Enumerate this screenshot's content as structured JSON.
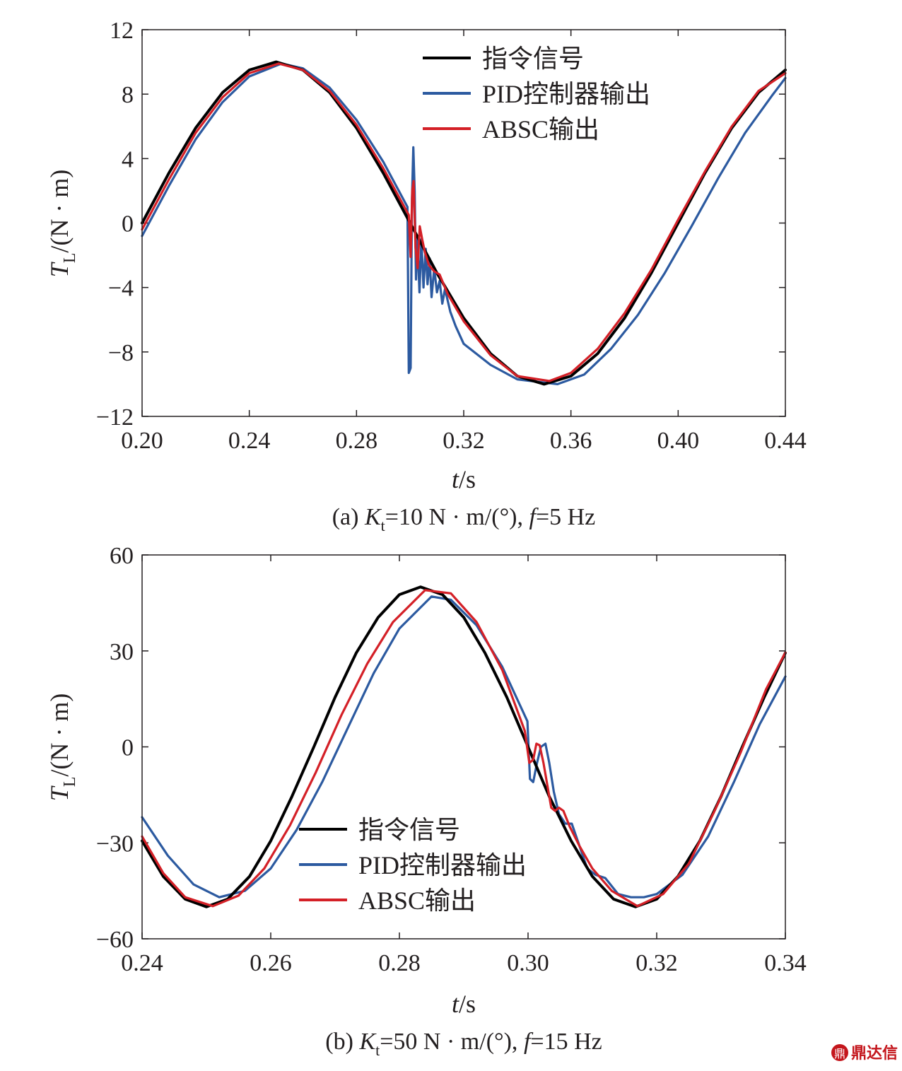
{
  "chart_data": [
    {
      "type": "line",
      "xlabel_italic": "t",
      "xlabel_unit": "/s",
      "ylabel_italic": "T",
      "ylabel_sub": "L",
      "ylabel_unit": "/(N · m)",
      "xlim": [
        0.2,
        0.44
      ],
      "ylim": [
        -12,
        12
      ],
      "xticks": [
        0.2,
        0.24,
        0.28,
        0.32,
        0.36,
        0.4,
        0.44
      ],
      "xtick_labels": [
        "0.20",
        "0.24",
        "0.28",
        "0.32",
        "0.36",
        "0.40",
        "0.44"
      ],
      "yticks": [
        -12,
        -8,
        -4,
        0,
        4,
        8,
        12
      ],
      "ytick_labels": [
        "−12",
        "−8",
        "−4",
        "0",
        "4",
        "8",
        "12"
      ],
      "legend_position": "top-right",
      "caption": {
        "prefix": "(a) ",
        "k": "K",
        "k_sub": "t",
        "mid": "=10 N · m/(°), ",
        "f": "f",
        "suffix": "=5 Hz"
      },
      "series": [
        {
          "name": "指令信号",
          "color": "#000000",
          "x": [
            0.2,
            0.21,
            0.22,
            0.23,
            0.24,
            0.25,
            0.26,
            0.27,
            0.28,
            0.29,
            0.3,
            0.31,
            0.32,
            0.33,
            0.34,
            0.35,
            0.36,
            0.37,
            0.38,
            0.39,
            0.4,
            0.41,
            0.42,
            0.43,
            0.44
          ],
          "y": [
            0.0,
            3.1,
            5.9,
            8.1,
            9.5,
            10.0,
            9.5,
            8.1,
            5.9,
            3.1,
            0.0,
            -3.1,
            -5.9,
            -8.1,
            -9.5,
            -10.0,
            -9.5,
            -8.1,
            -5.9,
            -3.1,
            0.0,
            3.1,
            5.9,
            8.1,
            9.5
          ]
        },
        {
          "name": "PID控制器输出",
          "color": "#2c5aa0",
          "x": [
            0.2,
            0.21,
            0.22,
            0.23,
            0.24,
            0.252,
            0.26,
            0.27,
            0.28,
            0.29,
            0.299,
            0.2995,
            0.3002,
            0.3007,
            0.3012,
            0.3017,
            0.3022,
            0.3027,
            0.3035,
            0.3042,
            0.305,
            0.3058,
            0.3065,
            0.3073,
            0.308,
            0.309,
            0.31,
            0.311,
            0.312,
            0.313,
            0.315,
            0.317,
            0.32,
            0.33,
            0.34,
            0.355,
            0.365,
            0.375,
            0.385,
            0.395,
            0.405,
            0.415,
            0.425,
            0.435,
            0.44
          ],
          "y": [
            -0.8,
            2.3,
            5.2,
            7.5,
            9.1,
            9.9,
            9.6,
            8.4,
            6.4,
            3.8,
            1.0,
            -9.3,
            -9.0,
            1.5,
            4.7,
            2.0,
            -3.5,
            -0.8,
            -4.3,
            -1.0,
            -4.0,
            -1.6,
            -3.8,
            -2.2,
            -4.6,
            -2.8,
            -4.3,
            -3.6,
            -5.0,
            -4.1,
            -5.5,
            -6.4,
            -7.5,
            -8.8,
            -9.7,
            -10.0,
            -9.4,
            -7.8,
            -5.7,
            -3.1,
            -0.2,
            2.8,
            5.6,
            7.9,
            9.0
          ]
        },
        {
          "name": "ABSC输出",
          "color": "#d42027",
          "x": [
            0.2,
            0.21,
            0.22,
            0.23,
            0.24,
            0.251,
            0.26,
            0.27,
            0.28,
            0.29,
            0.2995,
            0.3002,
            0.3008,
            0.3013,
            0.302,
            0.3028,
            0.3036,
            0.3045,
            0.3055,
            0.307,
            0.309,
            0.311,
            0.314,
            0.32,
            0.33,
            0.34,
            0.352,
            0.36,
            0.37,
            0.38,
            0.39,
            0.4,
            0.41,
            0.42,
            0.43,
            0.44
          ],
          "y": [
            -0.4,
            2.7,
            5.6,
            7.8,
            9.3,
            9.9,
            9.5,
            8.2,
            6.1,
            3.4,
            0.5,
            -2.1,
            2.0,
            2.6,
            -1.5,
            -2.8,
            -0.2,
            -1.0,
            -1.8,
            -2.6,
            -3.0,
            -3.2,
            -4.4,
            -6.1,
            -8.2,
            -9.5,
            -9.8,
            -9.3,
            -7.8,
            -5.6,
            -2.9,
            0.2,
            3.2,
            6.0,
            8.2,
            9.3
          ]
        }
      ]
    },
    {
      "type": "line",
      "xlabel_italic": "t",
      "xlabel_unit": "/s",
      "ylabel_italic": "T",
      "ylabel_sub": "L",
      "ylabel_unit": "/(N · m)",
      "xlim": [
        0.24,
        0.34
      ],
      "ylim": [
        -60,
        60
      ],
      "xticks": [
        0.24,
        0.26,
        0.28,
        0.3,
        0.32,
        0.34
      ],
      "xtick_labels": [
        "0.24",
        "0.26",
        "0.28",
        "0.30",
        "0.32",
        "0.34"
      ],
      "yticks": [
        -60,
        -30,
        0,
        30,
        60
      ],
      "ytick_labels": [
        "−60",
        "−30",
        "0",
        "30",
        "60"
      ],
      "legend_position": "bottom-left",
      "caption": {
        "prefix": "(b) ",
        "k": "K",
        "k_sub": "t",
        "mid": "=50 N · m/(°), ",
        "f": "f",
        "suffix": "=15 Hz"
      },
      "series": [
        {
          "name": "指令信号",
          "color": "#000000",
          "x": [
            0.24,
            0.2433,
            0.2467,
            0.25,
            0.2533,
            0.2567,
            0.26,
            0.2633,
            0.2667,
            0.27,
            0.2733,
            0.2767,
            0.28,
            0.2833,
            0.2867,
            0.29,
            0.2933,
            0.2967,
            0.3,
            0.3033,
            0.3067,
            0.31,
            0.3133,
            0.3167,
            0.32,
            0.3233,
            0.3267,
            0.33,
            0.3333,
            0.3367,
            0.34
          ],
          "y": [
            -29.4,
            -40.5,
            -47.6,
            -50.0,
            -47.6,
            -40.5,
            -29.4,
            -15.5,
            0.0,
            15.5,
            29.4,
            40.5,
            47.6,
            50.0,
            47.6,
            40.5,
            29.4,
            15.5,
            0.0,
            -15.5,
            -29.4,
            -40.5,
            -47.6,
            -50.0,
            -47.6,
            -40.5,
            -29.4,
            -15.5,
            0.0,
            15.5,
            29.4
          ]
        },
        {
          "name": "PID控制器输出",
          "color": "#2c5aa0",
          "x": [
            0.24,
            0.244,
            0.248,
            0.252,
            0.256,
            0.26,
            0.264,
            0.268,
            0.272,
            0.276,
            0.28,
            0.285,
            0.288,
            0.292,
            0.296,
            0.2999,
            0.3003,
            0.3008,
            0.3014,
            0.302,
            0.3027,
            0.3033,
            0.304,
            0.3048,
            0.3058,
            0.3068,
            0.308,
            0.3092,
            0.3105,
            0.312,
            0.314,
            0.316,
            0.318,
            0.32,
            0.324,
            0.328,
            0.332,
            0.336,
            0.34
          ],
          "y": [
            -22.0,
            -34.0,
            -43.0,
            -47.0,
            -45.0,
            -38.0,
            -26.0,
            -11.0,
            6.0,
            23.0,
            37.0,
            47.0,
            46.0,
            38.0,
            25.0,
            8.0,
            -10.0,
            -11.0,
            -5.0,
            0.0,
            1.0,
            -5.0,
            -14.0,
            -21.0,
            -24.0,
            -24.0,
            -31.0,
            -38.0,
            -40.0,
            -41.0,
            -46.0,
            -47.0,
            -47.0,
            -46.0,
            -40.0,
            -28.0,
            -11.0,
            7.0,
            22.0
          ]
        },
        {
          "name": "ABSC输出",
          "color": "#d42027",
          "x": [
            0.24,
            0.2433,
            0.2467,
            0.251,
            0.255,
            0.259,
            0.263,
            0.267,
            0.271,
            0.275,
            0.279,
            0.284,
            0.288,
            0.292,
            0.296,
            0.2995,
            0.3002,
            0.3008,
            0.3013,
            0.3018,
            0.3024,
            0.303,
            0.3036,
            0.3042,
            0.3048,
            0.3055,
            0.3065,
            0.308,
            0.31,
            0.313,
            0.317,
            0.321,
            0.325,
            0.329,
            0.333,
            0.337,
            0.34
          ],
          "y": [
            -28.0,
            -39.5,
            -47.0,
            -49.8,
            -46.5,
            -38.0,
            -24.5,
            -8.0,
            10.0,
            26.0,
            39.0,
            49.0,
            48.0,
            39.0,
            24.0,
            5.0,
            -5.0,
            -4.0,
            1.0,
            0.5,
            -5.0,
            -12.0,
            -19.0,
            -20.0,
            -19.0,
            -20.0,
            -25.0,
            -31.0,
            -38.0,
            -45.0,
            -49.8,
            -46.0,
            -36.5,
            -20.0,
            -2.0,
            18.0,
            29.5
          ]
        }
      ]
    }
  ],
  "watermark": {
    "icon_text": "鼎",
    "text": "鼎达信"
  }
}
